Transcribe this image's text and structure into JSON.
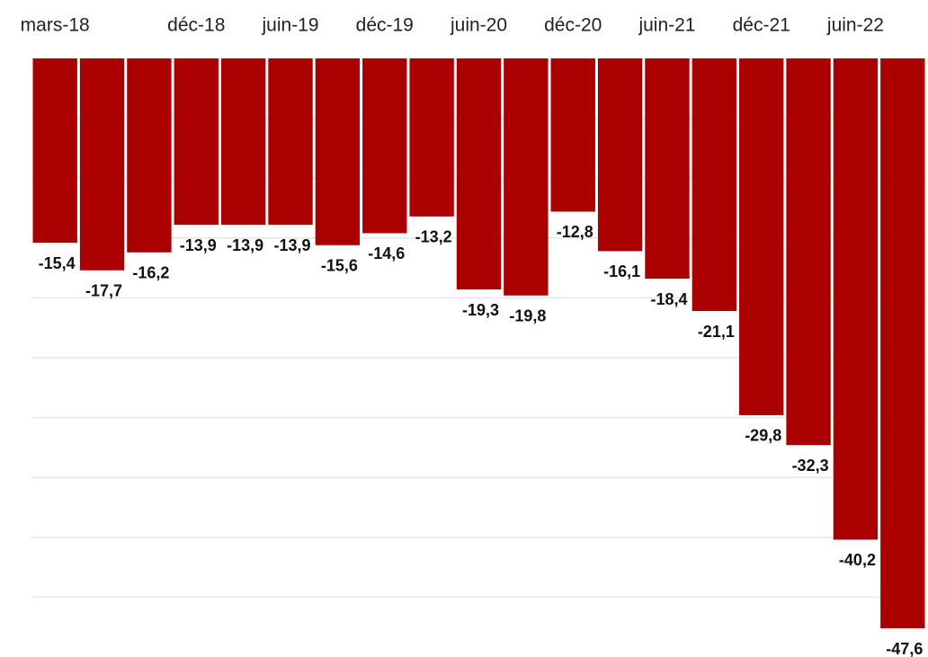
{
  "chart_data": {
    "type": "bar",
    "categories": [
      "mars-18",
      null,
      null,
      "déc-18",
      null,
      "juin-19",
      null,
      "déc-19",
      null,
      "juin-20",
      null,
      "déc-20",
      null,
      "juin-21",
      null,
      "déc-21",
      null,
      "juin-22",
      null
    ],
    "values": [
      -15.4,
      -17.7,
      -16.2,
      -13.9,
      -13.9,
      -13.9,
      -15.6,
      -14.6,
      -13.2,
      -19.3,
      -19.8,
      -12.8,
      -16.1,
      -18.4,
      -21.1,
      -29.8,
      -32.3,
      -40.2,
      -47.6
    ],
    "value_labels": [
      "-15,4",
      "-17,7",
      "-16,2",
      "-13,9",
      "-13,9",
      "-13,9",
      "-15,6",
      "-14,6",
      "-13,2",
      "-19,3",
      "-19,8",
      "-12,8",
      "-16,1",
      "-18,4",
      "-21,1",
      "-29,8",
      "-32,3",
      "-40,2",
      "-47,6"
    ],
    "color": "#aa0000",
    "ylim": [
      -50,
      0
    ],
    "yticks": [
      -45,
      -40,
      -35,
      -30,
      -25,
      -20,
      -15,
      -10,
      -5
    ],
    "grid": true
  }
}
